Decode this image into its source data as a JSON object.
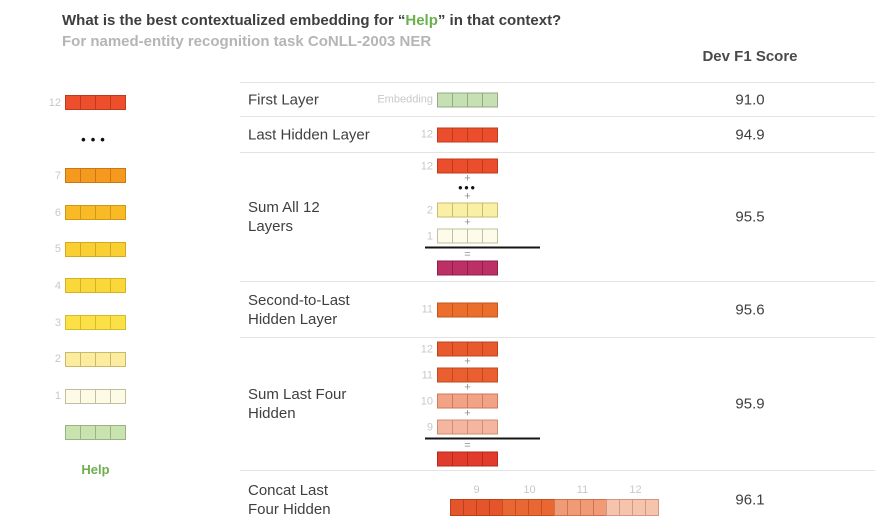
{
  "header": {
    "title_prefix": "What is the best contextualized embedding for “",
    "title_word": "Help",
    "title_suffix": "” in that context?",
    "subtitle": "For named-entity recognition task CoNLL-2003 NER",
    "score_column_label": "Dev F1 Score"
  },
  "colors": {
    "title_text": "#3E3E3E",
    "help_green": "#6AB04C",
    "subtitle_gray": "#B5B5B5",
    "label_text": "#3F3F3F",
    "mini_label_gray": "#C8C8C8",
    "separator": "#E3E3E3",
    "sum_magenta": "#BC3066",
    "sum_red": "#E03B2D"
  },
  "sidebar": {
    "word_label": "Help",
    "rows": [
      {
        "type": "vec",
        "label": "12",
        "fill": "#ED4E2B",
        "border": "#C03A1A"
      },
      {
        "type": "dots"
      },
      {
        "type": "vec",
        "label": "7",
        "fill": "#F5991F",
        "border": "#C97812"
      },
      {
        "type": "vec",
        "label": "6",
        "fill": "#F8BB26",
        "border": "#CF9716"
      },
      {
        "type": "vec",
        "label": "5",
        "fill": "#FACF33",
        "border": "#D2A91F"
      },
      {
        "type": "vec",
        "label": "4",
        "fill": "#FAD83A",
        "border": "#D4B224"
      },
      {
        "type": "vec",
        "label": "3",
        "fill": "#FBE146",
        "border": "#D5BC2C"
      },
      {
        "type": "vec",
        "label": "2",
        "fill": "#FCEC9F",
        "border": "#CBB96A"
      },
      {
        "type": "vec",
        "label": "1",
        "fill": "#FDFAE6",
        "border": "#C2BFA0"
      },
      {
        "type": "vec",
        "label": "",
        "fill": "#C9E3AF",
        "border": "#9BB286"
      }
    ]
  },
  "table": {
    "rows": [
      {
        "id": "first-layer",
        "label_lines": [
          "First Layer"
        ],
        "score": "91.0",
        "diagram": [
          {
            "type": "vec",
            "label": "Embedding",
            "fill": "#C6E0B4",
            "border": "#94A986"
          }
        ]
      },
      {
        "id": "last-hidden-layer",
        "label_lines": [
          "Last Hidden Layer"
        ],
        "score": "94.9",
        "diagram": [
          {
            "type": "vec",
            "label": "12",
            "fill": "#EA4E2C",
            "border": "#C23A1C"
          }
        ]
      },
      {
        "id": "sum-all-12-layers",
        "label_lines": [
          "Sum All 12",
          "Layers"
        ],
        "score": "95.5",
        "diagram": [
          {
            "type": "vec",
            "label": "12",
            "fill": "#EA4E2C",
            "border": "#C23A1C"
          },
          {
            "type": "plus"
          },
          {
            "type": "dots"
          },
          {
            "type": "plus"
          },
          {
            "type": "vec",
            "label": "2",
            "fill": "#FAF0A5",
            "border": "#C9BC72"
          },
          {
            "type": "plus"
          },
          {
            "type": "vec",
            "label": "1",
            "fill": "#FDFBE9",
            "border": "#C2BFA0"
          },
          {
            "type": "sumline"
          },
          {
            "type": "equals"
          },
          {
            "type": "vec",
            "label": "",
            "fill": "#BC3066",
            "border": "#8E2049"
          }
        ]
      },
      {
        "id": "second-to-last-hidden-layer",
        "label_lines": [
          "Second-to-Last",
          "Hidden Layer"
        ],
        "score": "95.6",
        "diagram": [
          {
            "type": "vec",
            "label": "11",
            "fill": "#EC6E2D",
            "border": "#C5551B"
          }
        ]
      },
      {
        "id": "sum-last-four-hidden",
        "label_lines": [
          "Sum Last Four",
          "Hidden"
        ],
        "score": "95.9",
        "diagram": [
          {
            "type": "vec",
            "label": "12",
            "fill": "#E85A2D",
            "border": "#C0431D"
          },
          {
            "type": "plus"
          },
          {
            "type": "vec",
            "label": "11",
            "fill": "#EA5F2F",
            "border": "#C2481E"
          },
          {
            "type": "plus"
          },
          {
            "type": "vec",
            "label": "10",
            "fill": "#F2A285",
            "border": "#CF7A5C"
          },
          {
            "type": "plus"
          },
          {
            "type": "vec",
            "label": "9",
            "fill": "#F4B69E",
            "border": "#D18D72"
          },
          {
            "type": "sumline"
          },
          {
            "type": "equals"
          },
          {
            "type": "vec",
            "label": "",
            "fill": "#E03B2D",
            "border": "#B32A1F"
          }
        ]
      },
      {
        "id": "concat-last-four-hidden",
        "label_lines": [
          "Concat Last",
          "Four Hidden"
        ],
        "score": "96.1",
        "diagram": [
          {
            "type": "concat",
            "cells_per_group": 4,
            "groups": [
              {
                "label": "9",
                "fill": "#E4552B",
                "border": "#BE3F1C"
              },
              {
                "label": "10",
                "fill": "#E96733",
                "border": "#C44E20"
              },
              {
                "label": "11",
                "fill": "#F09A76",
                "border": "#CC7351"
              },
              {
                "label": "12",
                "fill": "#F6C3AC",
                "border": "#D49781"
              }
            ]
          }
        ]
      }
    ]
  }
}
